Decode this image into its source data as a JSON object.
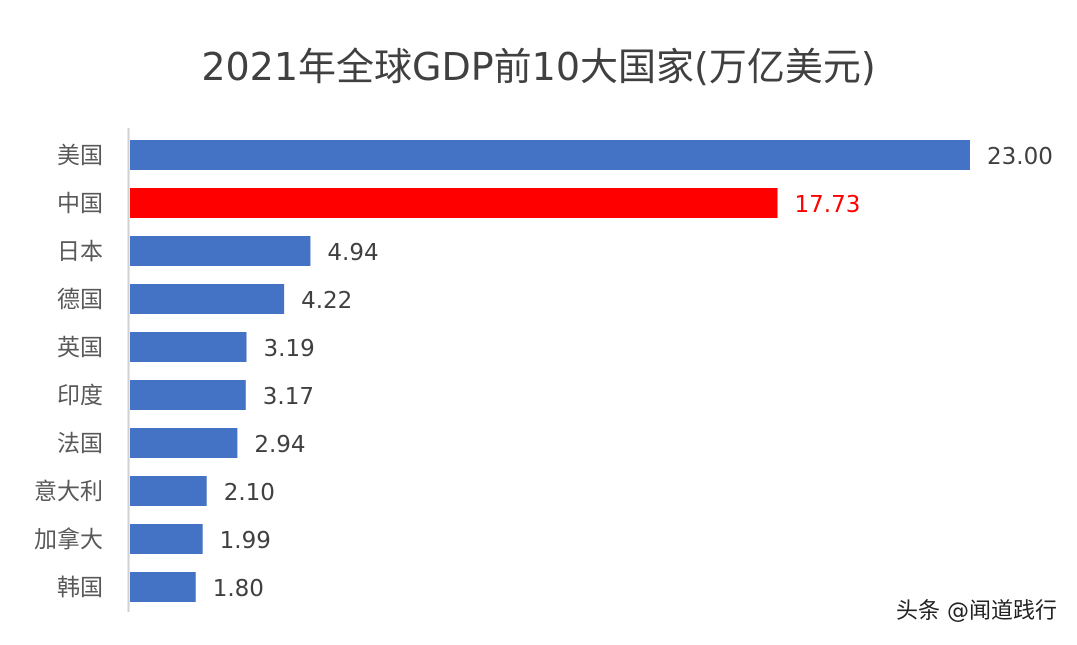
{
  "chart_data": {
    "type": "bar",
    "orientation": "horizontal",
    "title": "2021年全球GDP前10大国家(万亿美元)",
    "categories": [
      "美国",
      "中国",
      "日本",
      "德国",
      "英国",
      "印度",
      "法国",
      "意大利",
      "加拿大",
      "韩国"
    ],
    "values": [
      23.0,
      17.73,
      4.94,
      4.22,
      3.19,
      3.17,
      2.94,
      2.1,
      1.99,
      1.8
    ],
    "data_labels": [
      "23.00",
      "17.73",
      "4.94",
      "4.22",
      "3.19",
      "3.17",
      "2.94",
      "2.10",
      "1.99",
      "1.80"
    ],
    "colors": [
      "#4472C4",
      "#FF0000",
      "#4472C4",
      "#4472C4",
      "#4472C4",
      "#4472C4",
      "#4472C4",
      "#4472C4",
      "#4472C4",
      "#4472C4"
    ],
    "label_colors": [
      "#404040",
      "#FF0000",
      "#404040",
      "#404040",
      "#404040",
      "#404040",
      "#404040",
      "#404040",
      "#404040",
      "#404040"
    ],
    "xlim": [
      0,
      23
    ],
    "grid": false,
    "legend": "none"
  },
  "watermark": "头条 @闻道践行"
}
